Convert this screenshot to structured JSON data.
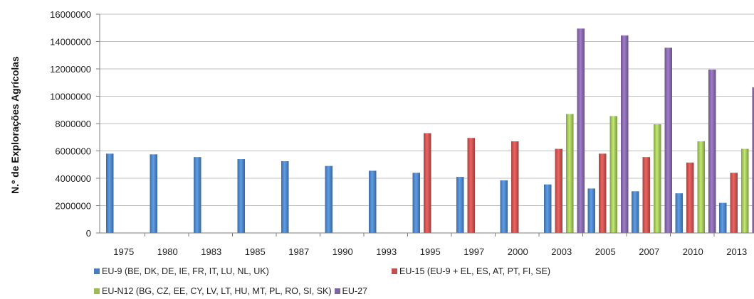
{
  "chart_data": {
    "type": "bar",
    "ylabel": "N.º de Explorações Agrícolas",
    "xlabel": "",
    "title": "",
    "ylim": [
      0,
      16000000
    ],
    "yticks": [
      0,
      2000000,
      4000000,
      6000000,
      8000000,
      10000000,
      12000000,
      14000000,
      16000000
    ],
    "grid": true,
    "legend_position": "bottom",
    "categories": [
      "1975",
      "1980",
      "1983",
      "1985",
      "1987",
      "1990",
      "1993",
      "1995",
      "1997",
      "2000",
      "2003",
      "2005",
      "2007",
      "2010",
      "2013"
    ],
    "series": [
      {
        "name": "EU-9 (BE, DK, DE, IE, FR, IT, LU, NL, UK)",
        "color": "#4a7ebb",
        "values": [
          5800000,
          5750000,
          5550000,
          5400000,
          5250000,
          4900000,
          4550000,
          4400000,
          4100000,
          3850000,
          3550000,
          3250000,
          3050000,
          2900000,
          2200000
        ]
      },
      {
        "name": "EU-15 (EU-9 + EL, ES, AT, PT, FI, SE)",
        "color": "#c0504d",
        "values": [
          null,
          null,
          null,
          null,
          null,
          null,
          null,
          7300000,
          6950000,
          6700000,
          6150000,
          5800000,
          5550000,
          5150000,
          4400000
        ]
      },
      {
        "name": "EU-N12 (BG, CZ, EE, CY, LV, LT, HU, MT, PL, RO, SI, SK)",
        "color": "#9bbb59",
        "values": [
          null,
          null,
          null,
          null,
          null,
          null,
          null,
          null,
          null,
          null,
          8700000,
          8550000,
          7950000,
          6700000,
          6150000
        ]
      },
      {
        "name": "EU-27",
        "color": "#8064a2",
        "values": [
          null,
          null,
          null,
          null,
          null,
          null,
          null,
          null,
          null,
          null,
          14950000,
          14450000,
          13550000,
          11950000,
          10650000
        ]
      }
    ]
  }
}
